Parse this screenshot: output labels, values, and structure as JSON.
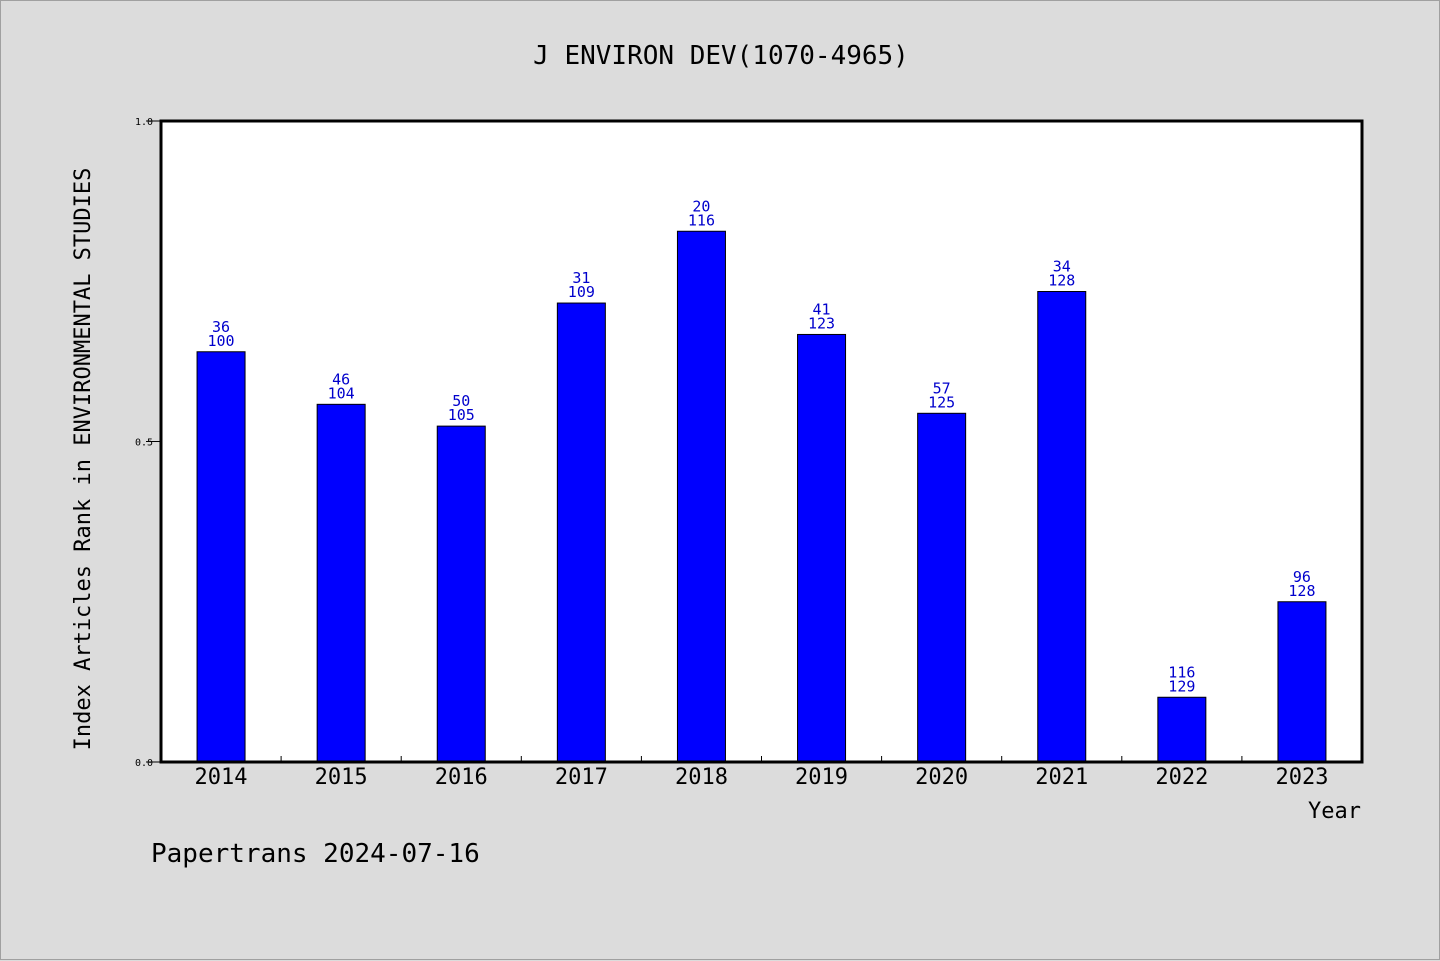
{
  "chart_data": {
    "type": "bar",
    "title": "J ENVIRON DEV(1070-4965)",
    "xlabel": "Year",
    "ylabel": "Index Articles Rank in ENVIRONMENTAL STUDIES",
    "ylim": [
      0.0,
      1.0
    ],
    "yticks": [
      "0.0",
      "0.5",
      "1.0"
    ],
    "categories": [
      "2014",
      "2015",
      "2016",
      "2017",
      "2018",
      "2019",
      "2020",
      "2021",
      "2022",
      "2023"
    ],
    "values": [
      0.64,
      0.558,
      0.524,
      0.716,
      0.828,
      0.667,
      0.544,
      0.734,
      0.101,
      0.25
    ],
    "rank": [
      "36",
      "46",
      "50",
      "31",
      "20",
      "41",
      "57",
      "34",
      "116",
      "96"
    ],
    "total": [
      "100",
      "104",
      "105",
      "109",
      "116",
      "123",
      "125",
      "128",
      "129",
      "128"
    ],
    "bar_color": "#0000ff",
    "label_color": "#0000cc",
    "grid": false,
    "legend": "none"
  },
  "footer": "Papertrans 2024-07-16"
}
